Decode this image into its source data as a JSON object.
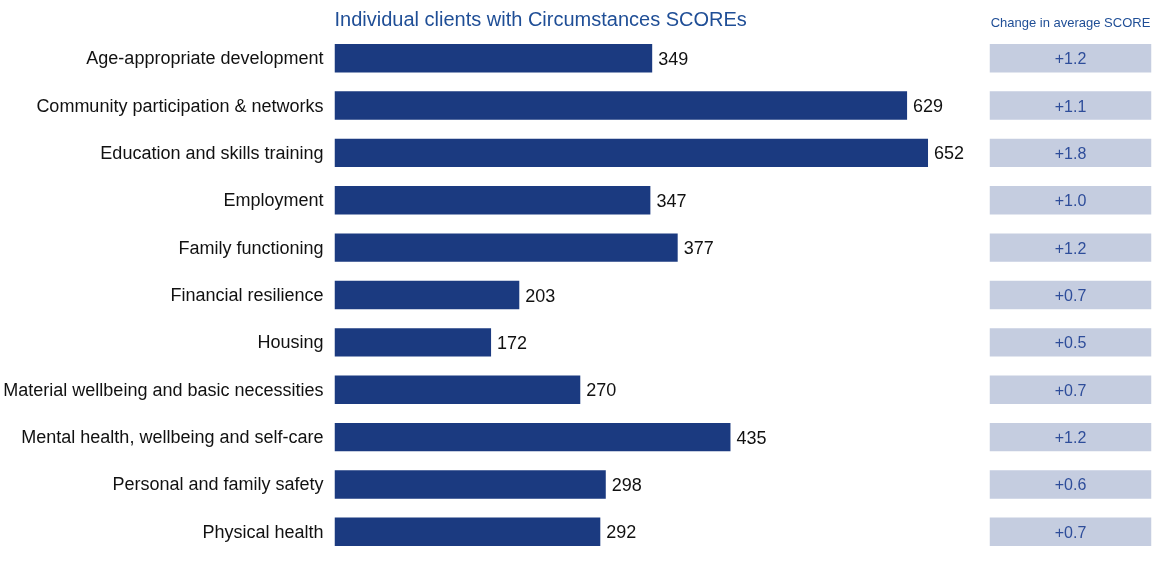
{
  "chart_data": [
    {
      "type": "bar",
      "orientation": "horizontal",
      "title": "Individual clients with Circumstances SCOREs",
      "categories": [
        "Age-appropriate development",
        "Community participation & networks",
        "Education and skills training",
        "Employment",
        "Family functioning",
        "Financial resilience",
        "Housing",
        "Material wellbeing and basic necessities",
        "Mental health, wellbeing and self-care",
        "Personal and family safety",
        "Physical health"
      ],
      "values": [
        349,
        629,
        652,
        347,
        377,
        203,
        172,
        270,
        435,
        298,
        292
      ],
      "color": "#1b3a80",
      "data_labels": true,
      "tick_labels": "y",
      "grid": false
    },
    {
      "type": "other",
      "title": "Change in average SCORE",
      "annotations": [
        "+1.2",
        "+1.1",
        "+1.8",
        "+1.0",
        "+1.2",
        "+0.7",
        "+0.5",
        "+0.7",
        "+1.2",
        "+0.6",
        "+0.7"
      ]
    }
  ]
}
